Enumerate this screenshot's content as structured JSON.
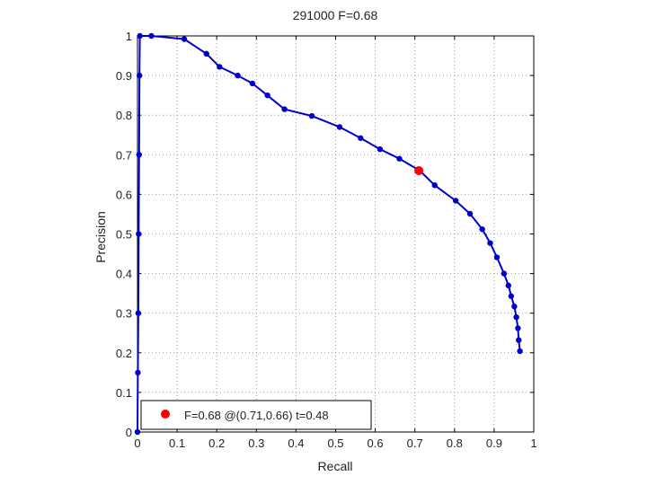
{
  "chart_data": {
    "type": "line",
    "title": "291000 F=0.68",
    "xlabel": "Recall",
    "ylabel": "Precision",
    "xlim": [
      0,
      1
    ],
    "ylim": [
      0,
      1
    ],
    "grid": true,
    "x_ticks": [
      "0",
      "0.1",
      "0.2",
      "0.3",
      "0.4",
      "0.5",
      "0.6",
      "0.7",
      "0.8",
      "0.9",
      "1"
    ],
    "y_ticks": [
      "0",
      "0.1",
      "0.2",
      "0.3",
      "0.4",
      "0.5",
      "0.6",
      "0.7",
      "0.8",
      "0.9",
      "1"
    ],
    "series": [
      {
        "color": "#0000cc",
        "points": [
          [
            0.0,
            0.0
          ],
          [
            0.001,
            0.15
          ],
          [
            0.002,
            0.3
          ],
          [
            0.003,
            0.5
          ],
          [
            0.004,
            0.7
          ],
          [
            0.005,
            0.9
          ],
          [
            0.006,
            1.0
          ],
          [
            0.035,
            1.0
          ],
          [
            0.118,
            0.992
          ],
          [
            0.174,
            0.955
          ],
          [
            0.207,
            0.922
          ],
          [
            0.253,
            0.9
          ],
          [
            0.29,
            0.88
          ],
          [
            0.328,
            0.85
          ],
          [
            0.371,
            0.815
          ],
          [
            0.44,
            0.798
          ],
          [
            0.51,
            0.77
          ],
          [
            0.563,
            0.742
          ],
          [
            0.612,
            0.714
          ],
          [
            0.661,
            0.69
          ],
          [
            0.712,
            0.66
          ],
          [
            0.75,
            0.623
          ],
          [
            0.803,
            0.584
          ],
          [
            0.839,
            0.551
          ],
          [
            0.87,
            0.512
          ],
          [
            0.89,
            0.477
          ],
          [
            0.907,
            0.441
          ],
          [
            0.925,
            0.4
          ],
          [
            0.936,
            0.37
          ],
          [
            0.943,
            0.343
          ],
          [
            0.951,
            0.317
          ],
          [
            0.956,
            0.29
          ],
          [
            0.96,
            0.262
          ],
          [
            0.962,
            0.232
          ],
          [
            0.965,
            0.204
          ]
        ]
      }
    ],
    "highlight": {
      "x": 0.71,
      "y": 0.66,
      "color": "#ff0000"
    },
    "legend": {
      "position": "bottom-left",
      "text": "F=0.68 @(0.71,0.66) t=0.48"
    }
  }
}
